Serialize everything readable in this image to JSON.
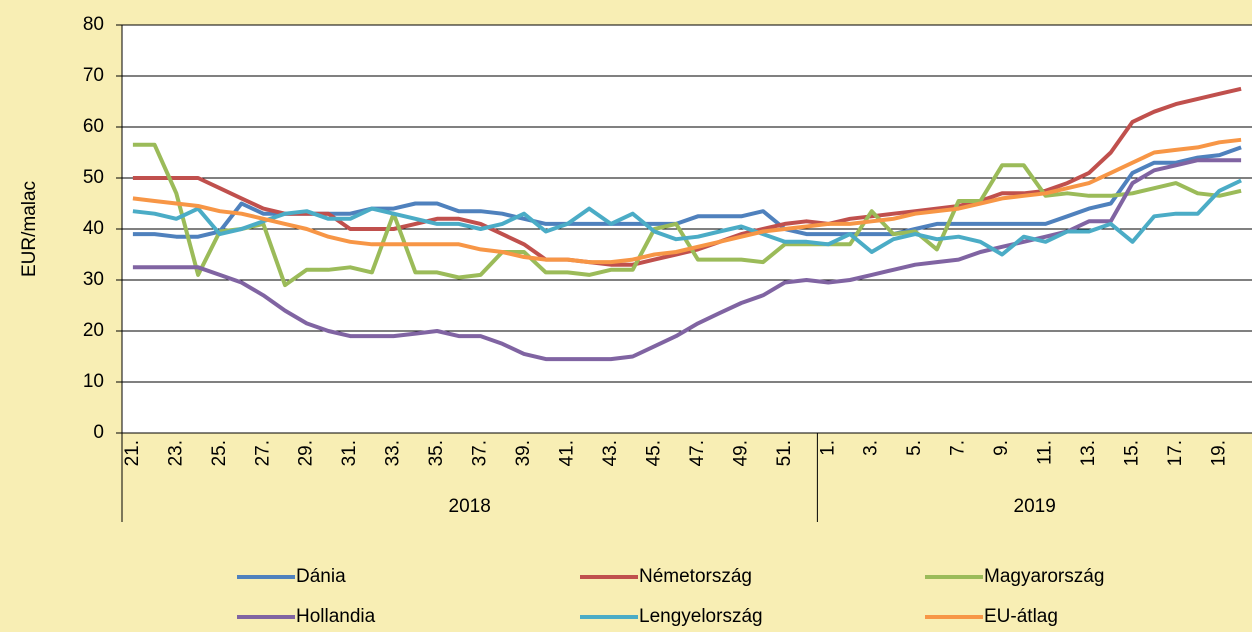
{
  "chart_data": {
    "type": "line",
    "y_label": "EUR/malac",
    "categories": [
      "21.",
      null,
      "23.",
      null,
      "25.",
      null,
      "27.",
      null,
      "29.",
      null,
      "31.",
      null,
      "33.",
      null,
      "35.",
      null,
      "37.",
      null,
      "39.",
      null,
      "41.",
      null,
      "43.",
      null,
      "45.",
      null,
      "47.",
      null,
      "49.",
      null,
      "51.",
      null,
      "1.",
      null,
      "3.",
      null,
      "5.",
      null,
      "7.",
      null,
      "9.",
      null,
      "11.",
      null,
      "13.",
      null,
      "15.",
      null,
      "17.",
      null,
      "19.",
      null
    ],
    "groups": [
      "2018",
      "2019"
    ],
    "ylim": [
      0,
      80
    ],
    "yticks": [
      0,
      10,
      20,
      30,
      40,
      50,
      60,
      70,
      80
    ],
    "grid": true,
    "legend": "bottom",
    "series": [
      {
        "name": "Dánia",
        "color": "#4f81bd",
        "values": [
          39,
          39,
          38.5,
          38.5,
          39.5,
          45,
          43,
          43,
          43,
          43,
          43,
          44,
          44,
          45,
          45,
          43.5,
          43.5,
          43,
          42,
          41,
          41,
          41,
          41,
          41,
          41,
          41,
          42.5,
          42.5,
          42.5,
          43.5,
          40,
          39,
          39,
          39,
          39,
          39,
          40,
          41,
          41,
          41,
          41,
          41,
          41,
          42.5,
          44,
          45,
          51,
          53,
          53,
          54,
          54.5,
          56
        ]
      },
      {
        "name": "Németország",
        "color": "#c0504d",
        "values": [
          50,
          50,
          50,
          50,
          48,
          46,
          44,
          43,
          43,
          43,
          40,
          40,
          40,
          41,
          42,
          42,
          41,
          39,
          37,
          34,
          34,
          33.5,
          33,
          33,
          34,
          35,
          36,
          37.5,
          39,
          40,
          41,
          41.5,
          41,
          42,
          42.5,
          43,
          43.5,
          44,
          44.5,
          45.5,
          47,
          47,
          47.5,
          49,
          51,
          55,
          61,
          63,
          64.5,
          65.5,
          66.5,
          67.5
        ]
      },
      {
        "name": "Magyarország",
        "color": "#9bbb59",
        "values": [
          56.5,
          56.5,
          47,
          31,
          39.5,
          40,
          41,
          29,
          32,
          32,
          32.5,
          31.5,
          43,
          31.5,
          31.5,
          30.5,
          31,
          35.5,
          35.5,
          31.5,
          31.5,
          31,
          32,
          32,
          40,
          41,
          34,
          34,
          34,
          33.5,
          37,
          37,
          37,
          37,
          43.5,
          39,
          39.5,
          36,
          45.5,
          45.5,
          52.5,
          52.5,
          46.5,
          47,
          46.5,
          46.5,
          47,
          48,
          49,
          47,
          46.5,
          47.5
        ]
      },
      {
        "name": "Hollandia",
        "color": "#8064a2",
        "values": [
          32.5,
          32.5,
          32.5,
          32.5,
          31,
          29.5,
          27,
          24,
          21.5,
          20,
          19,
          19,
          19,
          19.5,
          20,
          19,
          19,
          17.5,
          15.5,
          14.5,
          14.5,
          14.5,
          14.5,
          15,
          17,
          19,
          21.5,
          23.5,
          25.5,
          27,
          29.5,
          30,
          29.5,
          30,
          31,
          32,
          33,
          33.5,
          34,
          35.5,
          36.5,
          37.5,
          38.5,
          39.5,
          41.5,
          41.5,
          49,
          51.5,
          52.5,
          53.5,
          53.5,
          53.5
        ]
      },
      {
        "name": "Lengyelország",
        "color": "#4bacc6",
        "values": [
          43.5,
          43,
          42,
          44,
          39,
          40,
          41.5,
          43,
          43.5,
          42,
          42,
          44,
          43,
          42,
          41,
          41,
          40,
          41,
          43,
          39.5,
          41,
          44,
          41,
          43,
          39.5,
          38,
          38.5,
          39.5,
          40.5,
          39,
          37.5,
          37.5,
          37,
          39,
          35.5,
          38,
          39,
          38,
          38.5,
          37.5,
          35,
          38.5,
          37.5,
          39.5,
          39.5,
          41,
          37.5,
          42.5,
          43,
          43,
          47.5,
          49.5
        ]
      },
      {
        "name": "EU-átlag",
        "color": "#f79646",
        "values": [
          46,
          45.5,
          45,
          44.5,
          43.5,
          43,
          42,
          41,
          40,
          38.5,
          37.5,
          37,
          37,
          37,
          37,
          37,
          36,
          35.5,
          34.5,
          34,
          34,
          33.5,
          33.5,
          34,
          35,
          35.5,
          36.5,
          37.5,
          38.5,
          39.5,
          40,
          40.5,
          41,
          41,
          41.5,
          42,
          43,
          43.5,
          44,
          45,
          46,
          46.5,
          47,
          48,
          49,
          51,
          53,
          55,
          55.5,
          56,
          57,
          57.5
        ]
      }
    ]
  }
}
